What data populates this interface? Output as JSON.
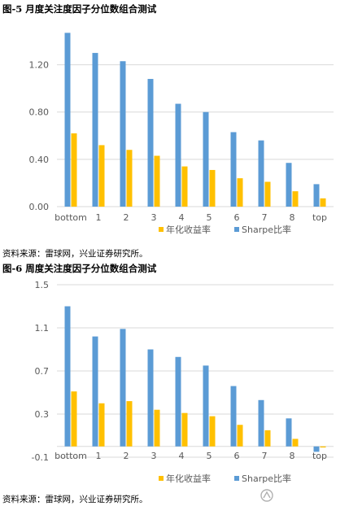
{
  "figures": [
    {
      "title": "图-5 月度关注度因子分位数组合测试",
      "source": "资料来源：雷球网，兴业证券研究所。"
    },
    {
      "title": "图-6 周度关注度因子分位数组合测试",
      "source": "资料来源：雷球网，兴业证券研究所。"
    }
  ],
  "colors": {
    "annual_return": "#ffc000",
    "sharpe": "#5b9bd5",
    "grid": "#d9d9d9",
    "axis_text": "#595959"
  },
  "chart_data": [
    {
      "type": "bar",
      "categories": [
        "bottom",
        "1",
        "2",
        "3",
        "4",
        "5",
        "6",
        "7",
        "8",
        "top"
      ],
      "yticks": [
        "0.00",
        "0.40",
        "0.80",
        "1.20"
      ],
      "ylim": [
        0,
        1.5
      ],
      "grid": true,
      "legend": "bottom",
      "series": [
        {
          "name": "年化收益率",
          "values": [
            0.62,
            0.52,
            0.48,
            0.43,
            0.34,
            0.31,
            0.24,
            0.21,
            0.13,
            0.07
          ]
        },
        {
          "name": "Sharpe比率",
          "values": [
            1.47,
            1.3,
            1.23,
            1.08,
            0.87,
            0.8,
            0.63,
            0.56,
            0.37,
            0.19
          ]
        }
      ]
    },
    {
      "type": "bar",
      "categories": [
        "bottom",
        "1",
        "2",
        "3",
        "4",
        "5",
        "6",
        "7",
        "8",
        "top"
      ],
      "yticks": [
        "-0.1",
        "0.3",
        "0.7",
        "1.1",
        "1.5"
      ],
      "ylim": [
        -0.1,
        1.5
      ],
      "grid": true,
      "legend": "bottom",
      "series": [
        {
          "name": "年化收益率",
          "values": [
            0.51,
            0.4,
            0.42,
            0.34,
            0.31,
            0.28,
            0.2,
            0.15,
            0.07,
            -0.01
          ]
        },
        {
          "name": "Sharpe比率",
          "values": [
            1.3,
            1.02,
            1.09,
            0.9,
            0.83,
            0.75,
            0.56,
            0.43,
            0.26,
            -0.05
          ]
        }
      ]
    }
  ]
}
